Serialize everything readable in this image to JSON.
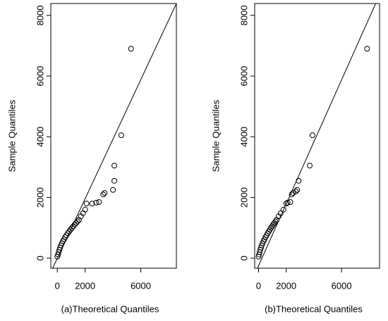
{
  "chart_data": [
    {
      "type": "scatter",
      "xlabel": "(a)Theoretical Quantiles",
      "ylabel": "Sample Quantiles",
      "xlim": [
        -470,
        8560
      ],
      "ylim": [
        -330,
        8390
      ],
      "xticks": [
        0,
        2000,
        6000
      ],
      "yticks": [
        0,
        2000,
        4000,
        6000,
        8000
      ],
      "ref_line": {
        "intercept": 0,
        "slope": 0.98
      },
      "x": [
        0,
        50,
        100,
        150,
        200,
        260,
        330,
        400,
        480,
        560,
        650,
        750,
        850,
        950,
        1050,
        1150,
        1250,
        1350,
        1450,
        1550,
        1700,
        1850,
        2000,
        2100,
        2500,
        2800,
        3000,
        3300,
        3400,
        4000,
        4100,
        4100,
        4600,
        5300
      ],
      "y": [
        50,
        120,
        200,
        280,
        350,
        420,
        490,
        560,
        620,
        690,
        750,
        820,
        880,
        940,
        1000,
        1050,
        1110,
        1160,
        1210,
        1260,
        1380,
        1480,
        1600,
        1800,
        1800,
        1830,
        1850,
        2100,
        2150,
        2250,
        2550,
        3050,
        4050,
        6900
      ]
    },
    {
      "type": "scatter",
      "xlabel": "(b)Theoretical Quantiles",
      "ylabel": "Sample Quantiles",
      "xlim": [
        -280,
        8750
      ],
      "ylim": [
        -330,
        8390
      ],
      "xticks": [
        0,
        2000,
        6000
      ],
      "yticks": [
        0,
        2000,
        4000,
        6000,
        8000
      ],
      "ref_line": {
        "intercept": -250,
        "slope": 1.02
      },
      "x": [
        0,
        40,
        80,
        130,
        180,
        230,
        290,
        360,
        430,
        500,
        580,
        660,
        740,
        820,
        900,
        980,
        1060,
        1140,
        1220,
        1300,
        1450,
        1600,
        1800,
        2000,
        2100,
        2300,
        2400,
        2500,
        2700,
        2800,
        2900,
        3700,
        3900,
        7850
      ],
      "y": [
        50,
        120,
        200,
        280,
        350,
        420,
        490,
        560,
        620,
        690,
        750,
        820,
        880,
        940,
        1000,
        1050,
        1110,
        1160,
        1210,
        1260,
        1380,
        1480,
        1600,
        1800,
        1830,
        1850,
        2100,
        2150,
        2200,
        2250,
        2550,
        3050,
        4050,
        6900
      ]
    }
  ]
}
